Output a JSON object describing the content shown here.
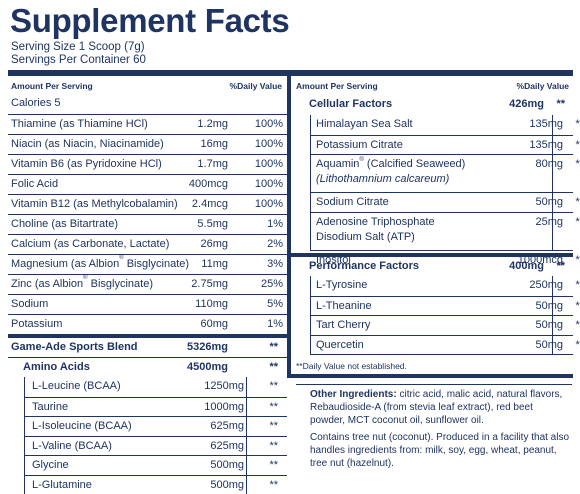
{
  "title": "Supplement Facts",
  "serving_size": "Serving Size 1 Scoop (7g)",
  "servings_per_container": "Servings Per Container 60",
  "left_table": {
    "header_amount": "Amount Per Serving",
    "header_dv": "%Daily Value",
    "rows": [
      {
        "name": "Calories 5",
        "amount": "",
        "dv": ""
      },
      {
        "name": "Thiamine (as Thiamine HCl)",
        "amount": "1.2mg",
        "dv": "100%"
      },
      {
        "name": "Niacin (as Niacin, Niacinamide)",
        "amount": "16mg",
        "dv": "100%"
      },
      {
        "name": "Vitamin B6 (as Pyridoxine HCl)",
        "amount": "1.7mg",
        "dv": "100%"
      },
      {
        "name": "Folic Acid",
        "amount": "400mcg",
        "dv": "100%"
      },
      {
        "name": "Vitamin B12 (as Methylcobalamin)",
        "amount": "2.4mcg",
        "dv": "100%"
      },
      {
        "name": "Choline (as Bitartrate)",
        "amount": "5.5mg",
        "dv": "1%"
      },
      {
        "name": "Calcium (as Carbonate, Lactate)",
        "amount": "26mg",
        "dv": "2%"
      },
      {
        "name_pre": "Magnesium (as Albion",
        "name_sup": "®",
        "name_post": " Bisglycinate)",
        "amount": "11mg",
        "dv": "3%"
      },
      {
        "name_pre": "Zinc (as Albion",
        "name_sup": "®",
        "name_post": " Bisglycinate)",
        "amount": "2.75mg",
        "dv": "25%"
      },
      {
        "name": "Sodium",
        "amount": "110mg",
        "dv": "5%"
      },
      {
        "name": "Potassium",
        "amount": "60mg",
        "dv": "1%"
      }
    ],
    "blend": {
      "name": "Game-Ade Sports Blend",
      "amount": "5326mg",
      "dv": "**"
    },
    "amino": {
      "name": "Amino Acids",
      "amount": "4500mg",
      "dv": "**"
    },
    "amino_rows": [
      {
        "name": "L-Leucine (BCAA)",
        "amount": "1250mg",
        "dv": "**"
      },
      {
        "name": "Taurine",
        "amount": "1000mg",
        "dv": "**"
      },
      {
        "name": "L-Isoleucine (BCAA)",
        "amount": "625mg",
        "dv": "**"
      },
      {
        "name": "L-Valine (BCAA)",
        "amount": "625mg",
        "dv": "**"
      },
      {
        "name": "Glycine",
        "amount": "500mg",
        "dv": "**"
      },
      {
        "name": "L-Glutamine",
        "amount": "500mg",
        "dv": "**"
      }
    ]
  },
  "right_table": {
    "header_amount": "Amount Per Serving",
    "header_dv": "%Daily Value",
    "cellular": {
      "name": "Cellular Factors",
      "amount": "426mg",
      "dv": "**"
    },
    "cellular_rows": [
      {
        "name": "Himalayan Sea Salt",
        "amount": "135mg",
        "dv": "**"
      },
      {
        "name": "Potassium Citrate",
        "amount": "135mg",
        "dv": "**"
      },
      {
        "line1_pre": "Aquamin",
        "line1_sup": "®",
        "line1_post": " (Calcified Seaweed)",
        "line2": "(Lithothamnium calcareum)",
        "amount": "80mg",
        "dv": "**"
      },
      {
        "name": "Sodium Citrate",
        "amount": "50mg",
        "dv": "**"
      },
      {
        "line1": "Adenosine Triphosphate",
        "line2": "Disodium Salt (ATP)",
        "amount": "25mg",
        "dv": "**"
      },
      {
        "name": "Inositol",
        "amount": "1000mcg",
        "dv": "**"
      }
    ],
    "performance": {
      "name": "Performance Factors",
      "amount": "400mg",
      "dv": "**"
    },
    "performance_rows": [
      {
        "name": "L-Tyrosine",
        "amount": "250mg",
        "dv": "**"
      },
      {
        "name": "L-Theanine",
        "amount": "50mg",
        "dv": "**"
      },
      {
        "name": "Tart Cherry",
        "amount": "50mg",
        "dv": "**"
      },
      {
        "name": "Quercetin",
        "amount": "50mg",
        "dv": "**"
      }
    ],
    "footnote": "**Daily Value not established."
  },
  "other_ingredients": {
    "label": "Other Ingredients:",
    "text": " citric acid, malic acid, natural flavors, Rebaudioside-A (from stevia leaf extract), red beet powder, MCT coconut oil, sunflower oil.",
    "allergen": "Contains tree nut (coconut). Produced in a facility that also handles ingredients from: milk, soy, egg, wheat, peanut, tree nut (hazelnut)."
  },
  "colors": {
    "ink": "#1f3461",
    "background": "#ffffff"
  }
}
